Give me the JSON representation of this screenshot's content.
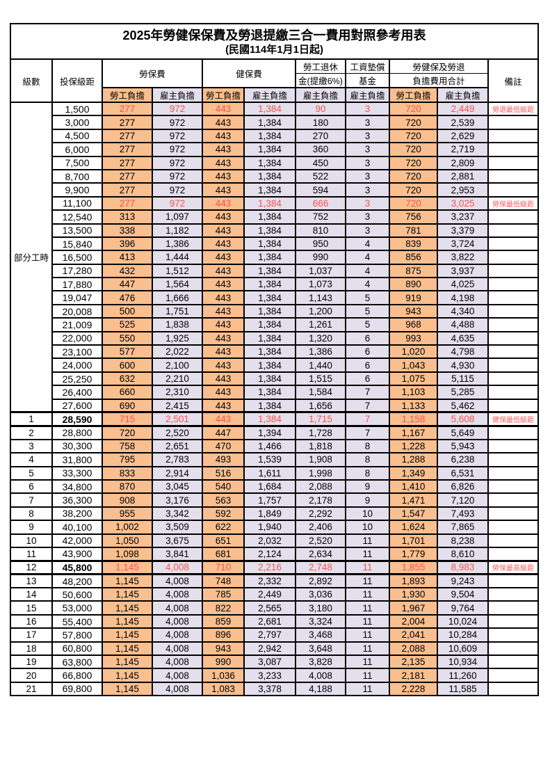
{
  "title": "2025年勞健保保費及勞退提繳三合一費用對照參考用表",
  "subtitle": "(民國114年1月1日起)",
  "colors": {
    "employee_bg": "#FABF8F",
    "employer_bg": "#E4DFEC",
    "highlight_text": "#F4544C",
    "remark_text": "#FA5A5A",
    "border": "#000000"
  },
  "table": {
    "header": {
      "level": "級數",
      "bracket": "投保級距",
      "labor_group": "勞保費",
      "health_group": "健保費",
      "pension_top": "勞工退休",
      "pension_bottom": "金(提繳6%)",
      "wage_fund_top": "工資墊償",
      "wage_fund_bottom": "基金",
      "total_top": "勞健保及勞退",
      "total_bottom": "負擔費用合計",
      "remark": "備註",
      "employee": "勞工負擔",
      "employer": "雇主負擔"
    },
    "part_time_label": "部分工時",
    "rows": [
      {
        "level": "",
        "bracket": "1,500",
        "values": [
          "277",
          "972",
          "443",
          "1,384",
          "90",
          "3",
          "720",
          "2,449"
        ],
        "remark": "勞退最低級距",
        "red": true
      },
      {
        "level": "",
        "bracket": "3,000",
        "values": [
          "277",
          "972",
          "443",
          "1,384",
          "180",
          "3",
          "720",
          "2,539"
        ],
        "remark": ""
      },
      {
        "level": "",
        "bracket": "4,500",
        "values": [
          "277",
          "972",
          "443",
          "1,384",
          "270",
          "3",
          "720",
          "2,629"
        ],
        "remark": ""
      },
      {
        "level": "",
        "bracket": "6,000",
        "values": [
          "277",
          "972",
          "443",
          "1,384",
          "360",
          "3",
          "720",
          "2,719"
        ],
        "remark": ""
      },
      {
        "level": "",
        "bracket": "7,500",
        "values": [
          "277",
          "972",
          "443",
          "1,384",
          "450",
          "3",
          "720",
          "2,809"
        ],
        "remark": ""
      },
      {
        "level": "",
        "bracket": "8,700",
        "values": [
          "277",
          "972",
          "443",
          "1,384",
          "522",
          "3",
          "720",
          "2,881"
        ],
        "remark": ""
      },
      {
        "level": "",
        "bracket": "9,900",
        "values": [
          "277",
          "972",
          "443",
          "1,384",
          "594",
          "3",
          "720",
          "2,953"
        ],
        "remark": ""
      },
      {
        "level": "",
        "bracket": "11,100",
        "values": [
          "277",
          "972",
          "443",
          "1,384",
          "666",
          "3",
          "720",
          "3,025"
        ],
        "remark": "勞保最低級距",
        "red": true
      },
      {
        "level": "",
        "bracket": "12,540",
        "values": [
          "313",
          "1,097",
          "443",
          "1,384",
          "752",
          "3",
          "756",
          "3,237"
        ],
        "remark": ""
      },
      {
        "level": "",
        "bracket": "13,500",
        "values": [
          "338",
          "1,182",
          "443",
          "1,384",
          "810",
          "3",
          "781",
          "3,379"
        ],
        "remark": ""
      },
      {
        "level": "",
        "bracket": "15,840",
        "values": [
          "396",
          "1,386",
          "443",
          "1,384",
          "950",
          "4",
          "839",
          "3,724"
        ],
        "remark": ""
      },
      {
        "level": "",
        "bracket": "16,500",
        "values": [
          "413",
          "1,444",
          "443",
          "1,384",
          "990",
          "4",
          "856",
          "3,822"
        ],
        "remark": ""
      },
      {
        "level": "",
        "bracket": "17,280",
        "values": [
          "432",
          "1,512",
          "443",
          "1,384",
          "1,037",
          "4",
          "875",
          "3,937"
        ],
        "remark": ""
      },
      {
        "level": "",
        "bracket": "17,880",
        "values": [
          "447",
          "1,564",
          "443",
          "1,384",
          "1,073",
          "4",
          "890",
          "4,025"
        ],
        "remark": ""
      },
      {
        "level": "",
        "bracket": "19,047",
        "values": [
          "476",
          "1,666",
          "443",
          "1,384",
          "1,143",
          "5",
          "919",
          "4,198"
        ],
        "remark": ""
      },
      {
        "level": "",
        "bracket": "20,008",
        "values": [
          "500",
          "1,751",
          "443",
          "1,384",
          "1,200",
          "5",
          "943",
          "4,340"
        ],
        "remark": ""
      },
      {
        "level": "",
        "bracket": "21,009",
        "values": [
          "525",
          "1,838",
          "443",
          "1,384",
          "1,261",
          "5",
          "968",
          "4,488"
        ],
        "remark": ""
      },
      {
        "level": "",
        "bracket": "22,000",
        "values": [
          "550",
          "1,925",
          "443",
          "1,384",
          "1,320",
          "6",
          "993",
          "4,635"
        ],
        "remark": ""
      },
      {
        "level": "",
        "bracket": "23,100",
        "values": [
          "577",
          "2,022",
          "443",
          "1,384",
          "1,386",
          "6",
          "1,020",
          "4,798"
        ],
        "remark": ""
      },
      {
        "level": "",
        "bracket": "24,000",
        "values": [
          "600",
          "2,100",
          "443",
          "1,384",
          "1,440",
          "6",
          "1,043",
          "4,930"
        ],
        "remark": ""
      },
      {
        "level": "",
        "bracket": "25,250",
        "values": [
          "632",
          "2,210",
          "443",
          "1,384",
          "1,515",
          "6",
          "1,075",
          "5,115"
        ],
        "remark": ""
      },
      {
        "level": "",
        "bracket": "26,400",
        "values": [
          "660",
          "2,310",
          "443",
          "1,384",
          "1,584",
          "7",
          "1,103",
          "5,285"
        ],
        "remark": ""
      },
      {
        "level": "",
        "bracket": "27,600",
        "values": [
          "690",
          "2,415",
          "443",
          "1,384",
          "1,656",
          "7",
          "1,133",
          "5,462"
        ],
        "remark": ""
      },
      {
        "level": "1",
        "bracket": "28,590",
        "values": [
          "715",
          "2,501",
          "443",
          "1,384",
          "1,715",
          "7",
          "1,158",
          "5,608"
        ],
        "remark": "健保最低級距",
        "red": true,
        "bold": true,
        "thick": true
      },
      {
        "level": "2",
        "bracket": "28,800",
        "values": [
          "720",
          "2,520",
          "447",
          "1,394",
          "1,728",
          "7",
          "1,167",
          "5,649"
        ],
        "remark": ""
      },
      {
        "level": "3",
        "bracket": "30,300",
        "values": [
          "758",
          "2,651",
          "470",
          "1,466",
          "1,818",
          "8",
          "1,228",
          "5,943"
        ],
        "remark": ""
      },
      {
        "level": "4",
        "bracket": "31,800",
        "values": [
          "795",
          "2,783",
          "493",
          "1,539",
          "1,908",
          "8",
          "1,288",
          "6,238"
        ],
        "remark": ""
      },
      {
        "level": "5",
        "bracket": "33,300",
        "values": [
          "833",
          "2,914",
          "516",
          "1,611",
          "1,998",
          "8",
          "1,349",
          "6,531"
        ],
        "remark": ""
      },
      {
        "level": "6",
        "bracket": "34,800",
        "values": [
          "870",
          "3,045",
          "540",
          "1,684",
          "2,088",
          "9",
          "1,410",
          "6,826"
        ],
        "remark": ""
      },
      {
        "level": "7",
        "bracket": "36,300",
        "values": [
          "908",
          "3,176",
          "563",
          "1,757",
          "2,178",
          "9",
          "1,471",
          "7,120"
        ],
        "remark": ""
      },
      {
        "level": "8",
        "bracket": "38,200",
        "values": [
          "955",
          "3,342",
          "592",
          "1,849",
          "2,292",
          "10",
          "1,547",
          "7,493"
        ],
        "remark": ""
      },
      {
        "level": "9",
        "bracket": "40,100",
        "values": [
          "1,002",
          "3,509",
          "622",
          "1,940",
          "2,406",
          "10",
          "1,624",
          "7,865"
        ],
        "remark": ""
      },
      {
        "level": "10",
        "bracket": "42,000",
        "values": [
          "1,050",
          "3,675",
          "651",
          "2,032",
          "2,520",
          "11",
          "1,701",
          "8,238"
        ],
        "remark": ""
      },
      {
        "level": "11",
        "bracket": "43,900",
        "values": [
          "1,098",
          "3,841",
          "681",
          "2,124",
          "2,634",
          "11",
          "1,779",
          "8,610"
        ],
        "remark": ""
      },
      {
        "level": "12",
        "bracket": "45,800",
        "values": [
          "1,145",
          "4,008",
          "710",
          "2,216",
          "2,748",
          "11",
          "1,855",
          "8,983"
        ],
        "remark": "勞保最高級距",
        "red": true,
        "bold": true,
        "thick": true
      },
      {
        "level": "13",
        "bracket": "48,200",
        "values": [
          "1,145",
          "4,008",
          "748",
          "2,332",
          "2,892",
          "11",
          "1,893",
          "9,243"
        ],
        "remark": ""
      },
      {
        "level": "14",
        "bracket": "50,600",
        "values": [
          "1,145",
          "4,008",
          "785",
          "2,449",
          "3,036",
          "11",
          "1,930",
          "9,504"
        ],
        "remark": ""
      },
      {
        "level": "15",
        "bracket": "53,000",
        "values": [
          "1,145",
          "4,008",
          "822",
          "2,565",
          "3,180",
          "11",
          "1,967",
          "9,764"
        ],
        "remark": ""
      },
      {
        "level": "16",
        "bracket": "55,400",
        "values": [
          "1,145",
          "4,008",
          "859",
          "2,681",
          "3,324",
          "11",
          "2,004",
          "10,024"
        ],
        "remark": ""
      },
      {
        "level": "17",
        "bracket": "57,800",
        "values": [
          "1,145",
          "4,008",
          "896",
          "2,797",
          "3,468",
          "11",
          "2,041",
          "10,284"
        ],
        "remark": ""
      },
      {
        "level": "18",
        "bracket": "60,800",
        "values": [
          "1,145",
          "4,008",
          "943",
          "2,942",
          "3,648",
          "11",
          "2,088",
          "10,609"
        ],
        "remark": ""
      },
      {
        "level": "19",
        "bracket": "63,800",
        "values": [
          "1,145",
          "4,008",
          "990",
          "3,087",
          "3,828",
          "11",
          "2,135",
          "10,934"
        ],
        "remark": ""
      },
      {
        "level": "20",
        "bracket": "66,800",
        "values": [
          "1,145",
          "4,008",
          "1,036",
          "3,233",
          "4,008",
          "11",
          "2,181",
          "11,260"
        ],
        "remark": ""
      },
      {
        "level": "21",
        "bracket": "69,800",
        "values": [
          "1,145",
          "4,008",
          "1,083",
          "3,378",
          "4,188",
          "11",
          "2,228",
          "11,585"
        ],
        "remark": ""
      }
    ]
  }
}
